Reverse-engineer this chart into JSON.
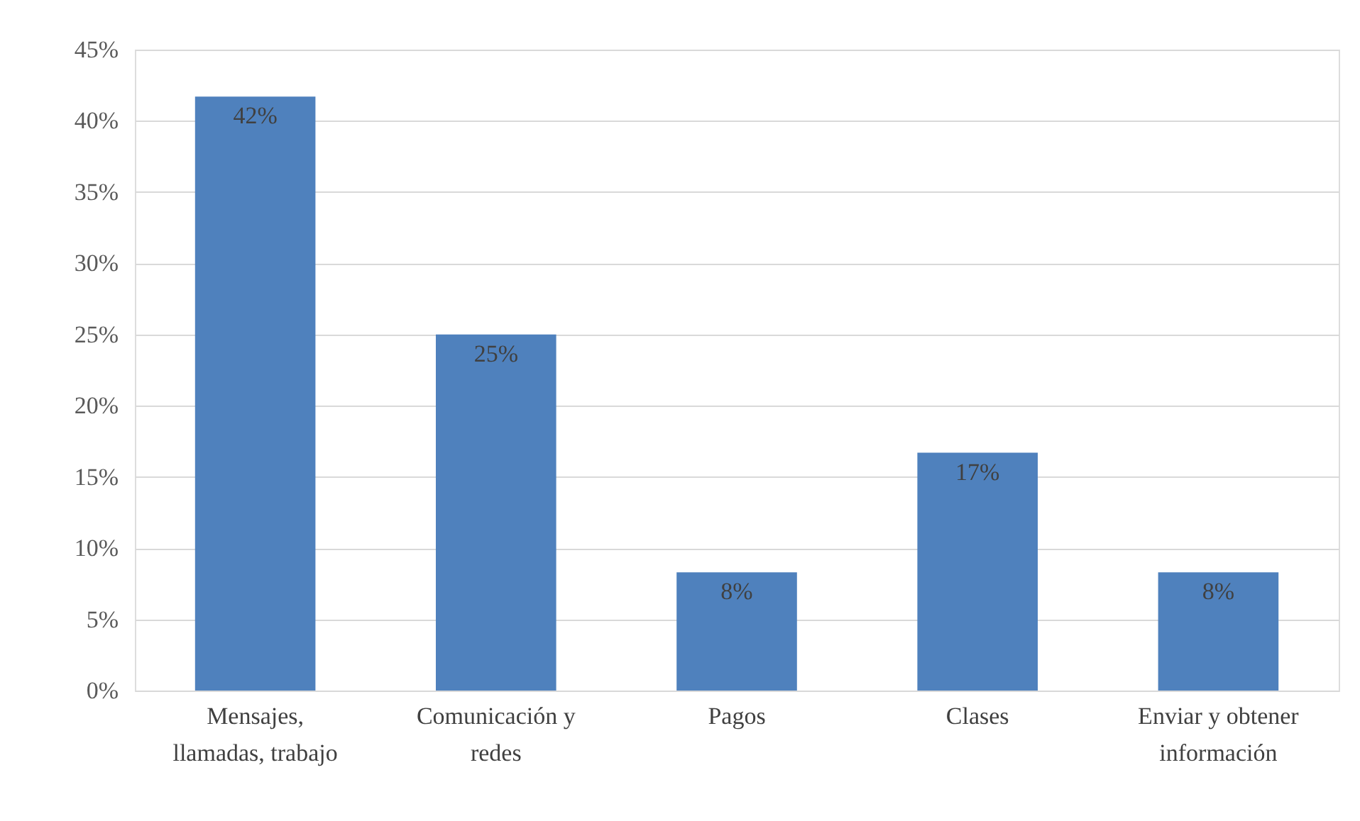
{
  "chart_data": {
    "type": "bar",
    "categories": [
      "Mensajes, llamadas, trabajo",
      "Comunicación y redes",
      "Pagos",
      "Clases",
      "Enviar y obtener información"
    ],
    "values": [
      41.7,
      25,
      8.3,
      16.7,
      8.3
    ],
    "value_labels": [
      "42%",
      "25%",
      "8%",
      "17%",
      "8%"
    ],
    "color": "#4f81bd",
    "ylim": [
      0,
      45
    ],
    "yticks": [
      {
        "value": 0,
        "label": "0%"
      },
      {
        "value": 5,
        "label": "5%"
      },
      {
        "value": 10,
        "label": "10%"
      },
      {
        "value": 15,
        "label": "15%"
      },
      {
        "value": 20,
        "label": "20%"
      },
      {
        "value": 25,
        "label": "25%"
      },
      {
        "value": 30,
        "label": "30%"
      },
      {
        "value": 35,
        "label": "35%"
      },
      {
        "value": 40,
        "label": "40%"
      },
      {
        "value": 45,
        "label": "45%"
      }
    ],
    "grid": "y"
  }
}
